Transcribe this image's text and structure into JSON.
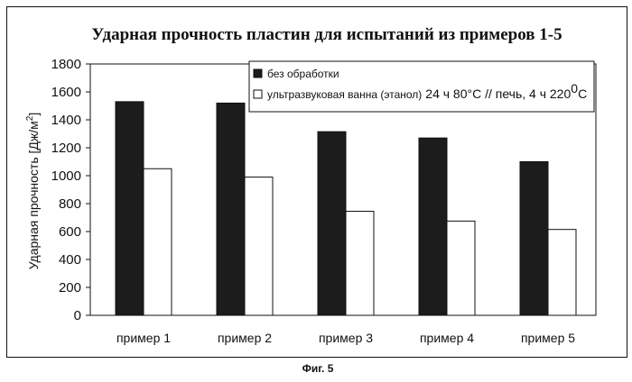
{
  "chart_data": {
    "type": "bar",
    "title": "Ударная прочность пластин для испытаний из примеров 1-5",
    "ylabel": "Ударная прочность [Дж/м²]",
    "xlabel": "",
    "ylim": [
      0,
      1800
    ],
    "yticks": [
      0,
      200,
      400,
      600,
      800,
      1000,
      1200,
      1400,
      1600,
      1800
    ],
    "grid": false,
    "legend_position": "top-right",
    "categories": [
      "пример  1",
      "пример  2",
      "пример  3",
      "пример  4",
      "пример  5"
    ],
    "series": [
      {
        "name": "без обработки",
        "color": "#1c1c1c",
        "values": [
          1530,
          1520,
          1315,
          1270,
          1100
        ]
      },
      {
        "name": "ультразвуковая ванна (этанол) 24 ч 80°C  //  печь, 4 ч 220°C",
        "color": "#ffffff",
        "values": [
          1050,
          990,
          745,
          675,
          615
        ]
      }
    ]
  },
  "legend": {
    "item1": "без обработки",
    "item2_part1": "ультразвуковая ванна (этанол)",
    "item2_part2": "24 ч 80°C  //  печь, 4 ч 220",
    "item2_sup": "0",
    "item2_part3": "C"
  },
  "ylabel_parts": {
    "main": "Ударная прочность [Дж/м",
    "sup": "2",
    "end": "]"
  },
  "caption": "Фиг. 5"
}
